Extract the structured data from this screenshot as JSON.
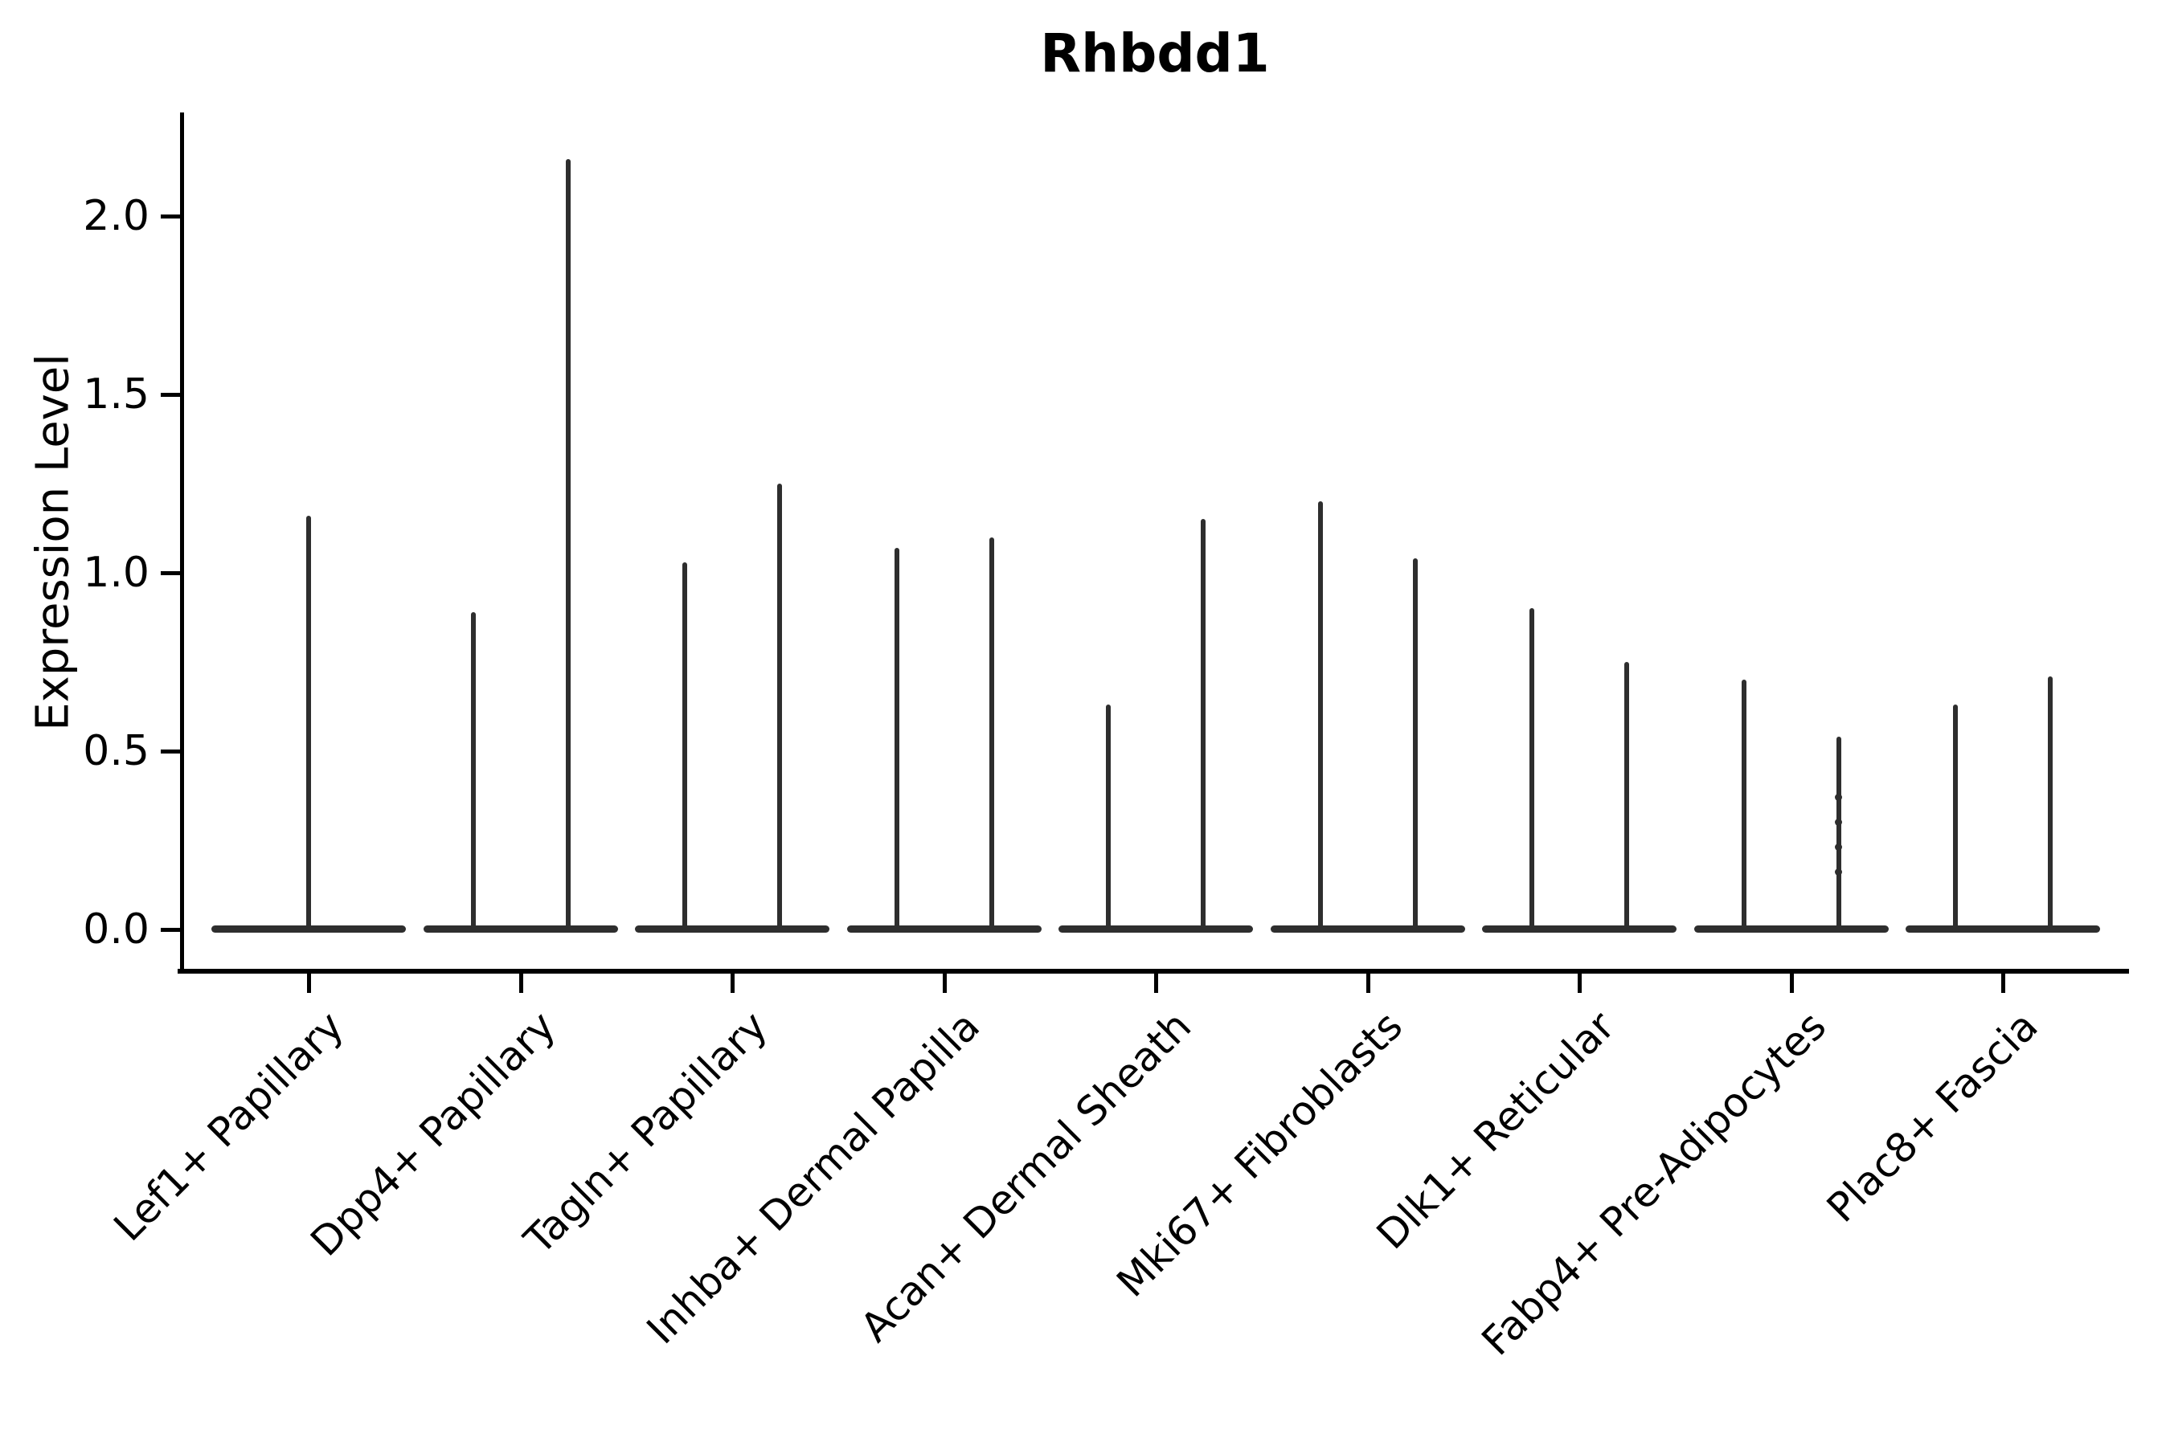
{
  "title": "Rhbdd1",
  "ylabel": "Expression Level",
  "chart_data": {
    "type": "violin",
    "title": "Rhbdd1",
    "xlabel": "",
    "ylabel": "Expression Level",
    "ylim": [
      -0.12,
      2.28
    ],
    "grid": false,
    "legend": "none",
    "note": "Single-cell expression violin plot; violins are collapsed to thin spikes (most cells at 0) over wide flat bases at 0. Category 1 has one centered violin; all other categories have two violins (left/right of tick).",
    "yticks": [
      {
        "value": 0.0,
        "label": "0.0"
      },
      {
        "value": 0.5,
        "label": "0.5"
      },
      {
        "value": 1.0,
        "label": "1.0"
      },
      {
        "value": 1.5,
        "label": "1.5"
      },
      {
        "value": 2.0,
        "label": "2.0"
      }
    ],
    "categories": [
      {
        "label": "Lef1+ Papillary",
        "violins": [
          {
            "position": "center",
            "max": 1.16
          }
        ]
      },
      {
        "label": "Dpp4+ Papillary",
        "violins": [
          {
            "position": "left",
            "max": 0.89
          },
          {
            "position": "right",
            "max": 2.16
          }
        ]
      },
      {
        "label": "Tagln+ Papillary",
        "violins": [
          {
            "position": "left",
            "max": 1.03
          },
          {
            "position": "right",
            "max": 1.25
          }
        ]
      },
      {
        "label": "Inhba+ Dermal Papilla",
        "violins": [
          {
            "position": "left",
            "max": 1.07
          },
          {
            "position": "right",
            "max": 1.1
          }
        ]
      },
      {
        "label": "Acan+ Dermal Sheath",
        "violins": [
          {
            "position": "left",
            "max": 0.63
          },
          {
            "position": "right",
            "max": 1.15
          }
        ]
      },
      {
        "label": "Mki67+ Fibroblasts",
        "violins": [
          {
            "position": "left",
            "max": 1.2
          },
          {
            "position": "right",
            "max": 1.04
          }
        ]
      },
      {
        "label": "Dlk1+ Reticular",
        "violins": [
          {
            "position": "left",
            "max": 0.9
          },
          {
            "position": "right",
            "max": 0.75
          }
        ]
      },
      {
        "label": "Fabp4+ Pre-Adipocytes",
        "violins": [
          {
            "position": "left",
            "max": 0.7
          },
          {
            "position": "right",
            "max": 0.54,
            "points": [
              0.16,
              0.23,
              0.3,
              0.37
            ]
          }
        ]
      },
      {
        "label": "Plac8+ Fascia",
        "violins": [
          {
            "position": "left",
            "max": 0.63
          },
          {
            "position": "right",
            "max": 0.71
          }
        ]
      }
    ],
    "colors": {
      "ink": "#000000",
      "violin": "#2e2e2e",
      "background": "#ffffff"
    }
  }
}
